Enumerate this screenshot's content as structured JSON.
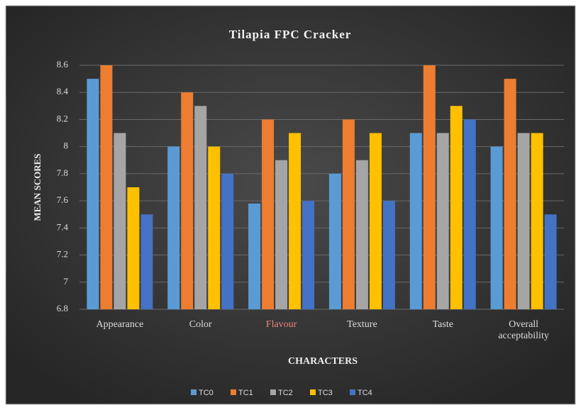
{
  "chart_data": {
    "type": "bar",
    "title": "Tilapia FPC Cracker",
    "x_label": "CHARACTERS",
    "y_label": "MEAN SCORES",
    "categories": [
      "Appearance",
      "Color",
      "Flavour",
      "Texture",
      "Taste",
      "Overall acceptability"
    ],
    "series": [
      {
        "name": "TC0",
        "color": "#5b9bd5",
        "values": [
          8.5,
          8.0,
          7.58,
          7.8,
          8.1,
          8.0
        ]
      },
      {
        "name": "TC1",
        "color": "#ed7d31",
        "values": [
          8.6,
          8.4,
          8.2,
          8.2,
          8.6,
          8.5
        ]
      },
      {
        "name": "TC2",
        "color": "#a5a5a5",
        "values": [
          8.1,
          8.3,
          7.9,
          7.9,
          8.1,
          8.1
        ]
      },
      {
        "name": "TC3",
        "color": "#ffc000",
        "values": [
          7.7,
          8.0,
          8.1,
          8.1,
          8.3,
          8.1
        ]
      },
      {
        "name": "TC4",
        "color": "#4472c4",
        "values": [
          7.5,
          7.8,
          7.6,
          7.6,
          8.2,
          7.5
        ]
      }
    ],
    "ylim": [
      6.8,
      8.6
    ],
    "yticks": [
      6.8,
      7,
      7.2,
      7.4,
      7.6,
      7.8,
      8,
      8.2,
      8.4,
      8.6
    ],
    "grid": true,
    "legend": "bottom"
  }
}
